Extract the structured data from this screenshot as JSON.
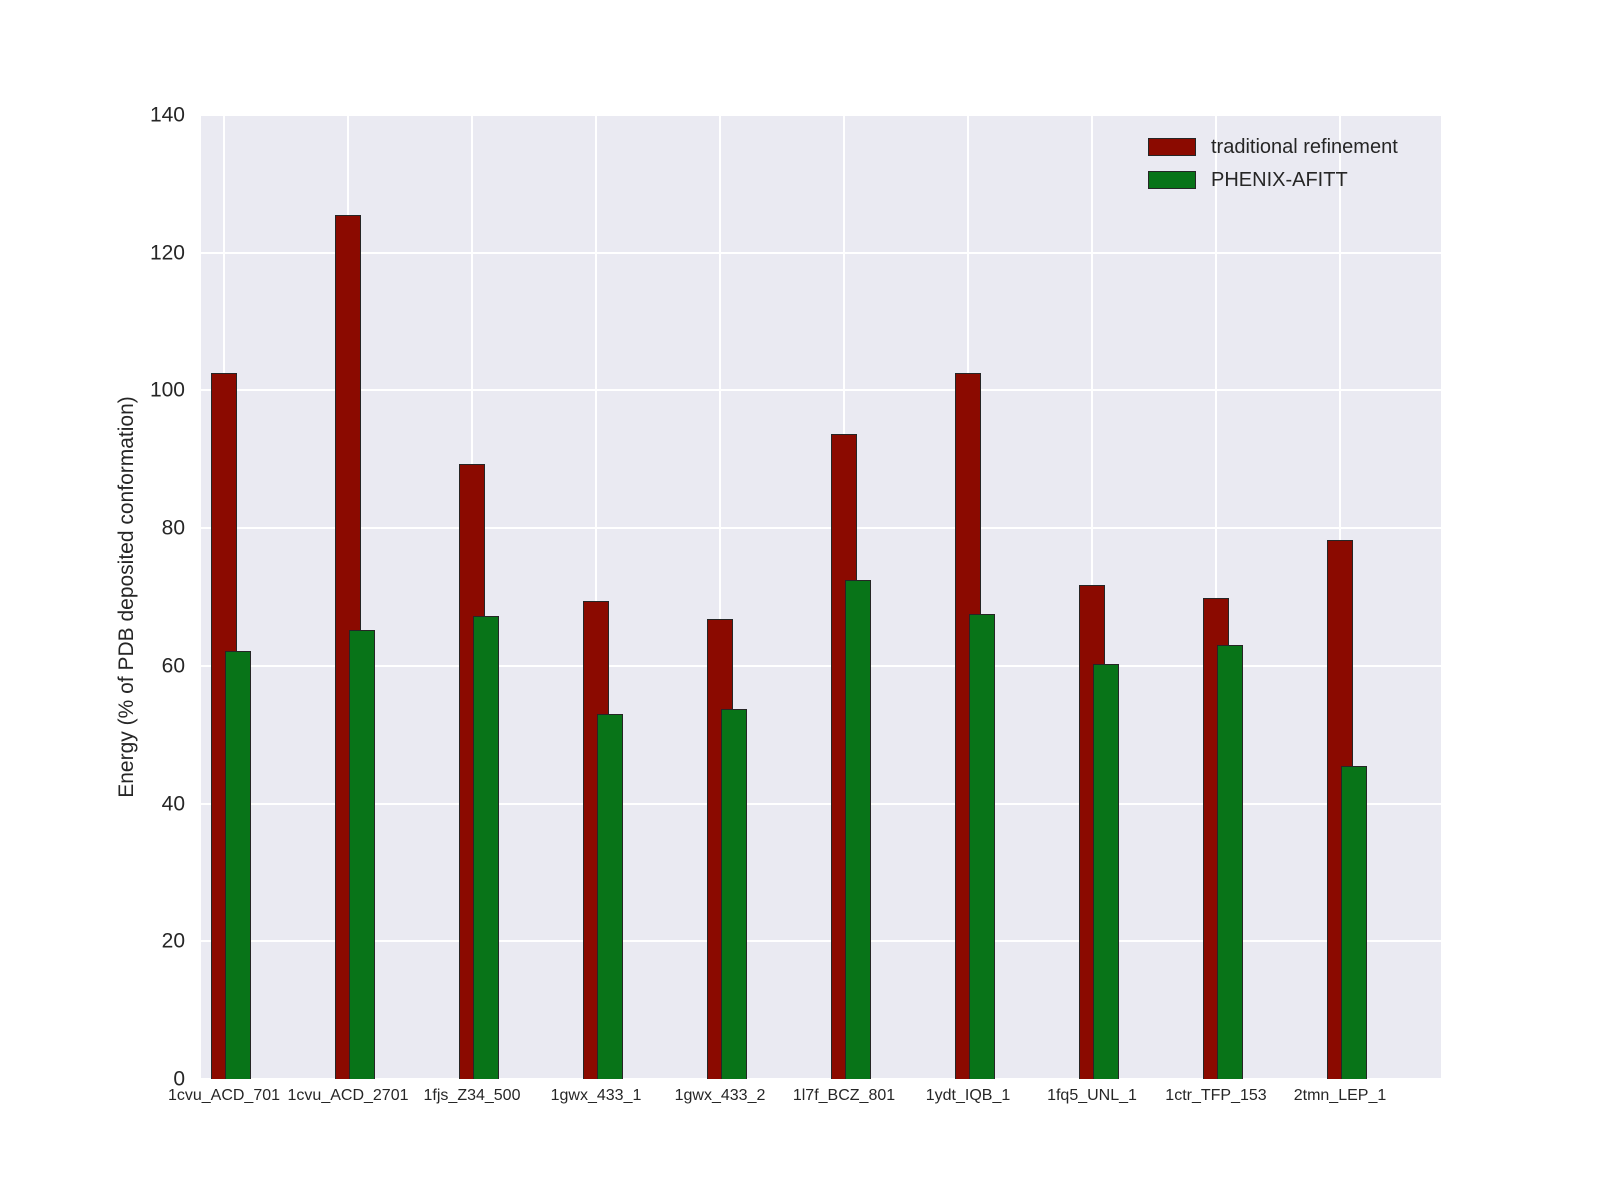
{
  "chart_data": {
    "type": "bar",
    "title": "",
    "xlabel": "",
    "ylabel": "Energy (% of PDB deposited conformation)",
    "ylim": [
      0,
      140
    ],
    "yticks": [
      0,
      20,
      40,
      60,
      80,
      100,
      120,
      140
    ],
    "grid": true,
    "grid_color": "#ffffff",
    "plot_background": "#eaeaf2",
    "figure_background": "#ffffff",
    "bar_edge_color": "#262626",
    "text_color": "#262626",
    "legend_position": "upper right",
    "categories": [
      "1cvu_ACD_701",
      "1cvu_ACD_2701",
      "1fjs_Z34_500",
      "1gwx_433_1",
      "1gwx_433_2",
      "1l7f_BCZ_801",
      "1ydt_IQB_1",
      "1fq5_UNL_1",
      "1ctr_TFP_153",
      "2tmn_LEP_1"
    ],
    "series": [
      {
        "name": "traditional refinement",
        "color": "#8b0a00",
        "values": [
          102.5,
          125.5,
          89.3,
          69.4,
          66.8,
          93.7,
          102.5,
          71.7,
          69.9,
          78.3
        ]
      },
      {
        "name": "PHENIX-AFITT",
        "color": "#087418",
        "values": [
          62.2,
          65.2,
          67.2,
          53.0,
          53.8,
          72.5,
          67.5,
          60.3,
          63.0,
          45.4
        ]
      }
    ]
  }
}
